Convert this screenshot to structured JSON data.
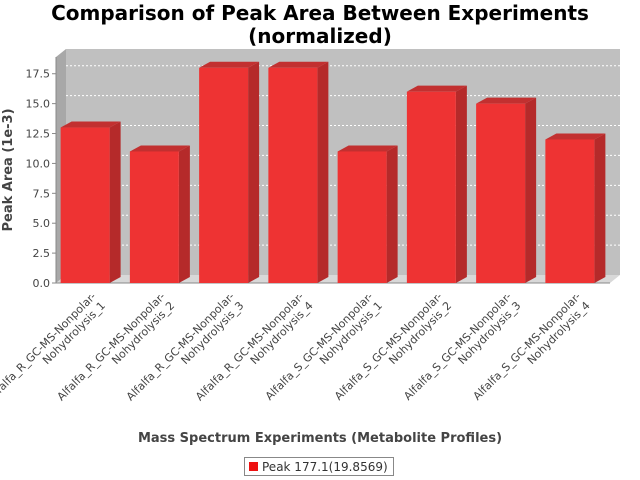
{
  "chart_data": {
    "type": "bar",
    "title": "Comparison of Peak Area Between Experiments (normalized)",
    "title_lines": [
      "Comparison of Peak Area Between Experiments",
      "(normalized)"
    ],
    "xlabel": "Mass Spectrum Experiments (Metabolite Profiles)",
    "ylabel": "Peak Area (1e-3)",
    "ylim": [
      0,
      18.9
    ],
    "yticks": [
      "0.0",
      "2.5",
      "5.0",
      "7.5",
      "10.0",
      "12.5",
      "15.0",
      "17.5"
    ],
    "grid": true,
    "legend_position": "bottom",
    "categories": [
      [
        "Alfalfa_R_GC-MS-Nonpolar-",
        "Nohydrolysis_1"
      ],
      [
        "Alfalfa_R_GC-MS-Nonpolar-",
        "Nohydrolysis_2"
      ],
      [
        "Alfalfa_R_GC-MS-Nonpolar-",
        "Nohydrolysis_3"
      ],
      [
        "Alfalfa_R_GC-MS-Nonpolar-",
        "Nohydrolysis_4"
      ],
      [
        "Alfalfa_S_GC-MS-Nonpolar-",
        "Nohydrolysis_1"
      ],
      [
        "Alfalfa_S_GC-MS-Nonpolar-",
        "Nohydrolysis_2"
      ],
      [
        "Alfalfa_S_GC-MS-Nonpolar-",
        "Nohydrolysis_3"
      ],
      [
        "Alfalfa_S_GC-MS-Nonpolar-",
        "Nohydrolysis_4"
      ]
    ],
    "series": [
      {
        "name": "Peak 177.1(19.8569)",
        "color": "#ee1111",
        "values": [
          13.0,
          11.0,
          18.0,
          18.0,
          11.0,
          16.0,
          15.0,
          12.0
        ]
      }
    ]
  }
}
